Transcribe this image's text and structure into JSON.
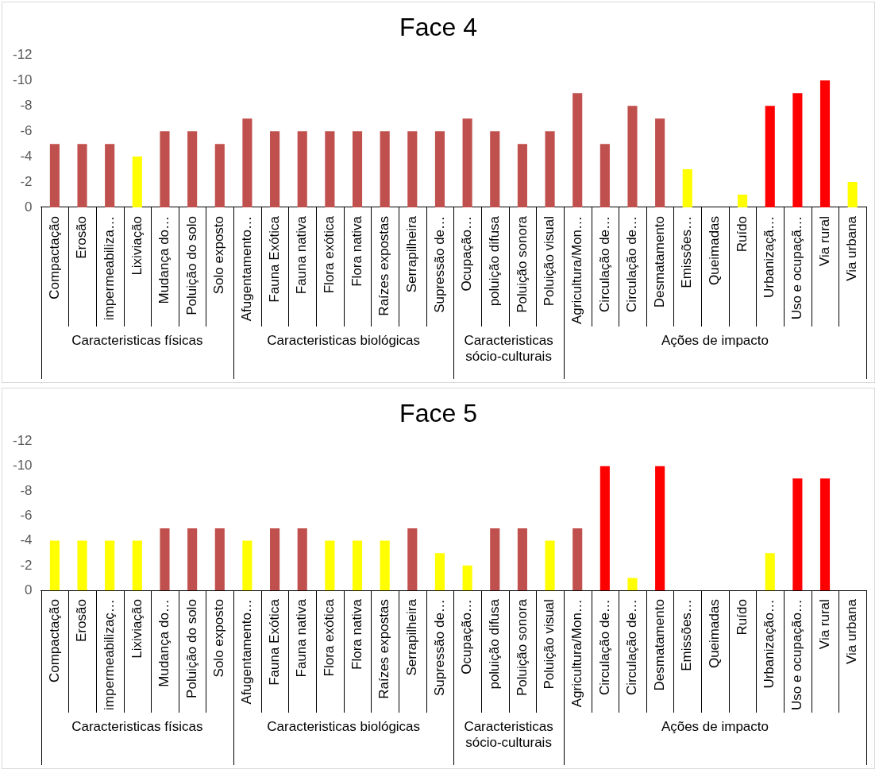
{
  "chart_data": [
    {
      "type": "bar",
      "title": "Face 4",
      "categories": [
        "Compactação",
        "Erosão",
        "impermeabiliza…",
        "Lixiviação",
        "Mudança do…",
        "Poluição do solo",
        "Solo exposto",
        "Afugentamento…",
        "Fauna Exótica",
        "Fauna nativa",
        "Flora exótica",
        "Flora nativa",
        "Raízes expostas",
        "Serrapilheira",
        "Supressão de…",
        "Ocupação…",
        "poluição difusa",
        "Poluição sonora",
        "Poluição visual",
        "Agricultura/Mon…",
        "Circulação de…",
        "Circulação de…",
        "Desmatamento",
        "Emissões…",
        "Queimadas",
        "Ruído",
        "Urbanizaçã…",
        "Uso e ocupaçã…",
        "Via rural",
        "Via urbana"
      ],
      "values": [
        -5,
        -5,
        -5,
        -4,
        -6,
        -6,
        -5,
        -7,
        -6,
        -6,
        -6,
        -6,
        -6,
        -6,
        -6,
        -7,
        -6,
        -5,
        -6,
        -9,
        -5,
        -8,
        -7,
        -3,
        null,
        -1,
        -8,
        -9,
        -10,
        -2
      ],
      "colors": [
        "#c0504d",
        "#c0504d",
        "#c0504d",
        "#ffff00",
        "#c0504d",
        "#c0504d",
        "#c0504d",
        "#c0504d",
        "#c0504d",
        "#c0504d",
        "#c0504d",
        "#c0504d",
        "#c0504d",
        "#c0504d",
        "#c0504d",
        "#c0504d",
        "#c0504d",
        "#c0504d",
        "#c0504d",
        "#c0504d",
        "#c0504d",
        "#c0504d",
        "#c0504d",
        "#ffff00",
        "#c0504d",
        "#ffff00",
        "#ff0000",
        "#ff0000",
        "#ff0000",
        "#ffff00"
      ],
      "ylim": [
        0,
        -12
      ],
      "yticks": [
        0,
        -2,
        -4,
        -6,
        -8,
        -10,
        -12
      ],
      "legend": false,
      "annotations": [
        "Caracteristicas físicas",
        "Caracteristicas biológicas",
        "Caracteristicas sócio-culturais",
        "Ações de impacto"
      ]
    },
    {
      "type": "bar",
      "title": "Face 5",
      "categories": [
        "Compactação",
        "Erosão",
        "impermeabilizaç…",
        "Lixiviação",
        "Mudança do…",
        "Poluição do solo",
        "Solo exposto",
        "Afugentamento…",
        "Fauna Exótica",
        "Fauna nativa",
        "Flora exótica",
        "Flora nativa",
        "Raízes expostas",
        "Serrapilheira",
        "Supressão de…",
        "Ocupação…",
        "poluição difusa",
        "Poluição sonora",
        "Poluição visual",
        "Agricultura/Mon…",
        "Circulação de…",
        "Circulação de…",
        "Desmatamento",
        "Emissões…",
        "Queimadas",
        "Ruído",
        "Urbanização…",
        "Uso e ocupação…",
        "Via rural",
        "Via urbana"
      ],
      "values": [
        -4,
        -4,
        -4,
        -4,
        -5,
        -5,
        -5,
        -4,
        -5,
        -5,
        -4,
        -4,
        -4,
        -5,
        -3,
        -2,
        -5,
        -5,
        -4,
        -5,
        -10,
        -1,
        -10,
        null,
        null,
        null,
        -3,
        -9,
        -9,
        null
      ],
      "colors": [
        "#ffff00",
        "#ffff00",
        "#ffff00",
        "#ffff00",
        "#c0504d",
        "#c0504d",
        "#c0504d",
        "#ffff00",
        "#c0504d",
        "#c0504d",
        "#ffff00",
        "#ffff00",
        "#ffff00",
        "#c0504d",
        "#ffff00",
        "#ffff00",
        "#c0504d",
        "#c0504d",
        "#ffff00",
        "#c0504d",
        "#ff0000",
        "#ffff00",
        "#ff0000",
        "#c0504d",
        "#c0504d",
        "#c0504d",
        "#ffff00",
        "#ff0000",
        "#ff0000",
        "#c0504d"
      ],
      "ylim": [
        0,
        -12
      ],
      "yticks": [
        0,
        -2,
        -4,
        -6,
        -8,
        -10,
        -12
      ],
      "legend": false,
      "annotations": [
        "Caracteristicas físicas",
        "Caracteristicas biológicas",
        "Caracteristicas sócio-culturais",
        "Ações de impacto"
      ]
    }
  ]
}
